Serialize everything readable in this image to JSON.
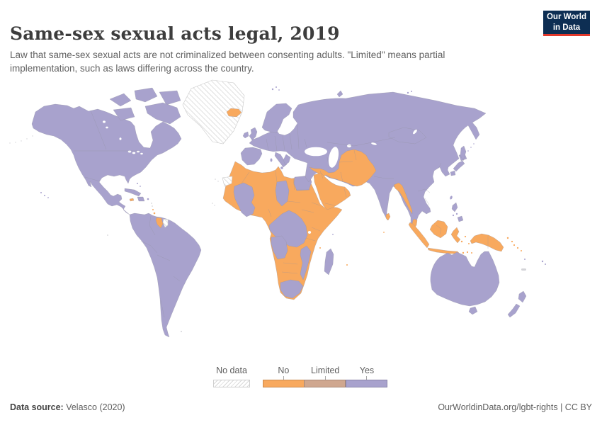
{
  "header": {
    "title": "Same-sex sexual acts legal, 2019",
    "subtitle": "Law that same-sex sexual acts are not criminalized between consenting adults. \"Limited\" means partial implementation, such as laws differing across the country."
  },
  "logo": {
    "line1": "Our World",
    "line2": "in Data"
  },
  "legend": {
    "no_data_label": "No data",
    "categories": [
      {
        "label": "No",
        "color": "#f8a95e"
      },
      {
        "label": "Limited",
        "color": "#cfa78f"
      },
      {
        "label": "Yes",
        "color": "#a8a2cd"
      }
    ]
  },
  "footer": {
    "source_label": "Data source:",
    "source_value": " Velasco (2020)",
    "right_text": "OurWorldinData.org/lgbt-rights | CC BY"
  },
  "colors": {
    "yes": "#a8a2cd",
    "no": "#f8a95e",
    "limited": "#cfa78f",
    "no_data_hatch": "#cfcfcf",
    "land_border": "#8f8f9e",
    "logo_bg": "#0d2e53",
    "logo_red": "#e2382b",
    "title_text": "#3d3d3d",
    "body_text": "#616161"
  },
  "chart_data": {
    "type": "choropleth_map",
    "title": "Same-sex sexual acts legal, 2019",
    "legend_categories": [
      "No data",
      "No",
      "Limited",
      "Yes"
    ],
    "category_colors": {
      "No data": "white-gray hatch",
      "No": "#f8a95e",
      "Limited": "#cfa78f",
      "Yes": "#a8a2cd"
    },
    "readings_from_map": {
      "yes_regions": [
        "Canada",
        "United States",
        "Mexico",
        "Central America",
        "Cuba",
        "Hispaniola",
        "South America (except Guyana)",
        "Europe",
        "Turkey",
        "Russia",
        "Kazakhstan",
        "China",
        "Mongolia",
        "Japan",
        "Korea",
        "India",
        "Nepal",
        "Thailand",
        "Vietnam, Laos & Cambodia",
        "Philippines",
        "Australia",
        "New Zealand",
        "Mali & Burkina Faso area",
        "Cote d'Ivoire",
        "Chad area",
        "Congo basin (DRC, CAR, Congo)",
        "Angola",
        "South Africa",
        "Mozambique",
        "Madagascar",
        "Egypt",
        "Israel & Jordan"
      ],
      "no_regions": [
        "Most of North, West & East Africa (Morocco, Algeria, Libya, Sudan, Ethiopia, Somalia, Kenya, Tanzania, Nigeria, Ghana, Senegal, Mauritania, Cameroon, Uganda)",
        "Namibia-Botswana-Zimbabwe-Zambia belt",
        "Arabian Peninsula",
        "Syria & Iraq",
        "Iran",
        "Afghanistan & Pakistan",
        "Turkmenistan & Uzbekistan",
        "Bangladesh",
        "Myanmar",
        "Sri Lanka",
        "Malaysia",
        "Indonesia",
        "Papua New Guinea & Solomon Islands",
        "Guyana",
        "Jamaica",
        "Iceland",
        "Maldives",
        "Comoros",
        "Mauritius"
      ],
      "limited_regions": [],
      "no_data_regions": [
        "Greenland",
        "Western Sahara",
        "Suriname",
        "New Caledonia"
      ]
    }
  }
}
